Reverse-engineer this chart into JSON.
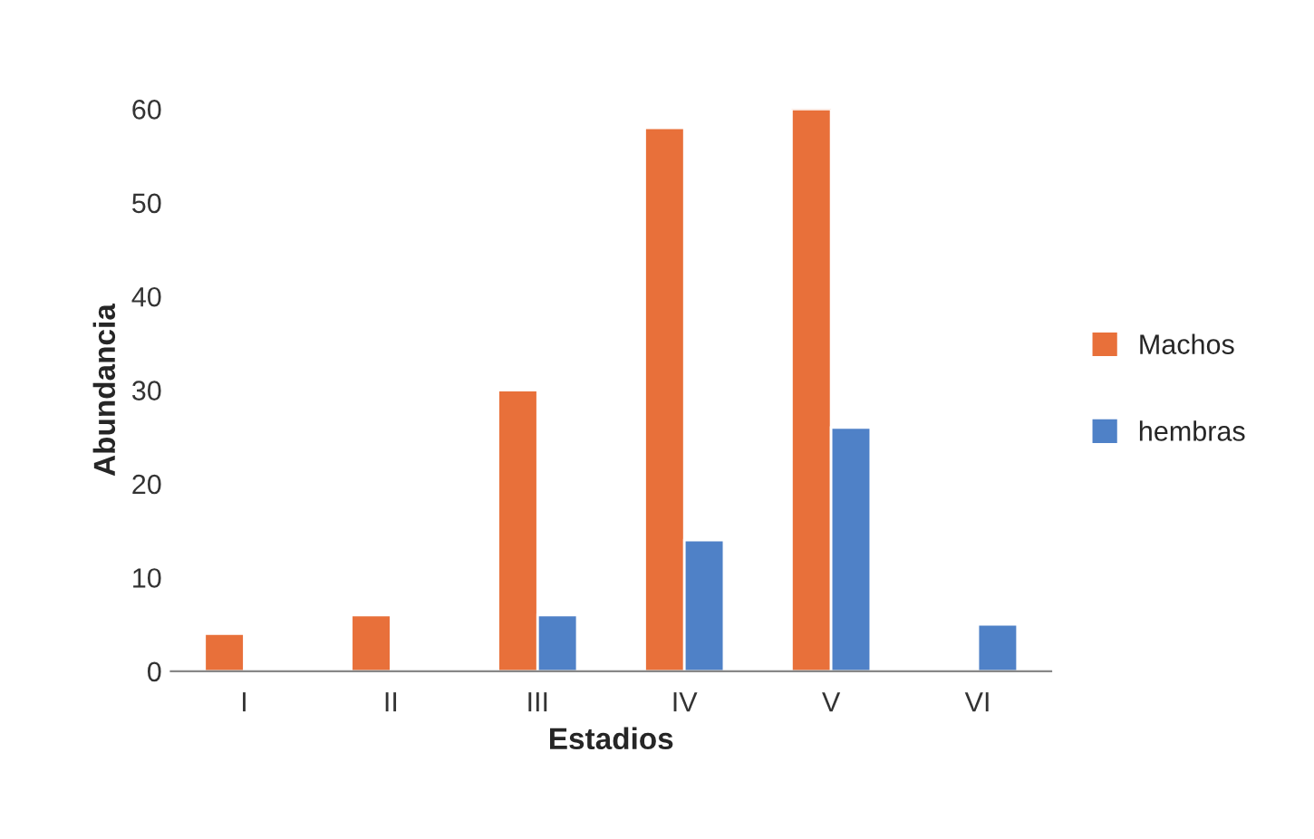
{
  "chart_data": {
    "type": "bar",
    "xlabel": "Estadios",
    "ylabel": "Abundancia",
    "categories": [
      "I",
      "II",
      "III",
      "IV",
      "V",
      "VI"
    ],
    "series": [
      {
        "name": "Machos",
        "color": "#e8703a",
        "values": [
          4,
          6,
          30,
          58,
          60,
          null
        ]
      },
      {
        "name": "hembras",
        "color": "#4f81c7",
        "values": [
          null,
          null,
          6,
          14,
          26,
          5
        ]
      }
    ],
    "ylim": [
      0,
      60
    ],
    "yticks": [
      0,
      10,
      20,
      30,
      40,
      50,
      60
    ],
    "grid": false,
    "legend": "right"
  }
}
